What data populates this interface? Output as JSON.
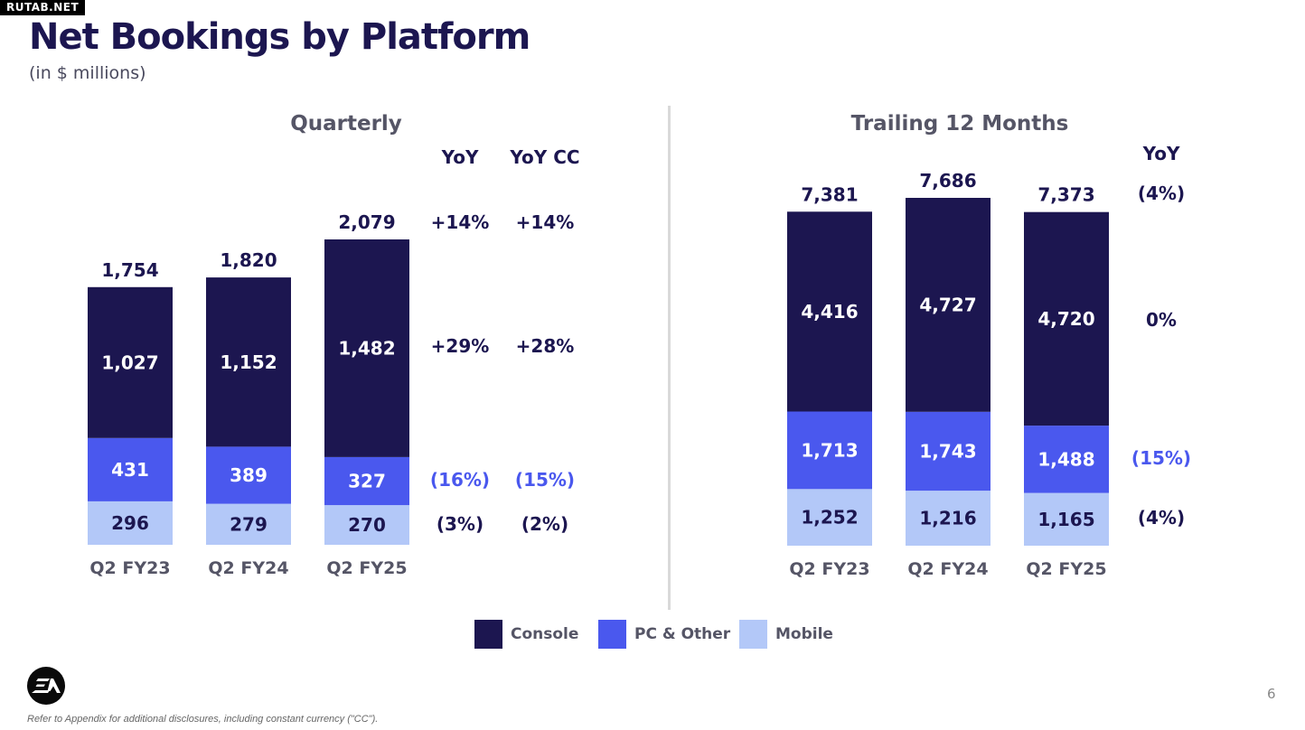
{
  "watermark": "RUTAB.NET",
  "header": {
    "title": "Net Bookings by Platform",
    "subtitle": "(in $ millions)"
  },
  "colors": {
    "console": "#1c1650",
    "pc_other": "#4a58ee",
    "mobile": "#b3c8f8",
    "pc_negative_text": "#4a58ee"
  },
  "chart_data": [
    {
      "type": "bar",
      "stacked": true,
      "title": "Quarterly",
      "categories": [
        "Q2 FY23",
        "Q2 FY24",
        "Q2 FY25"
      ],
      "series": [
        {
          "name": "Mobile",
          "values": [
            296,
            279,
            270
          ]
        },
        {
          "name": "PC & Other",
          "values": [
            431,
            389,
            327
          ]
        },
        {
          "name": "Console",
          "values": [
            1027,
            1152,
            1482
          ]
        }
      ],
      "series_labels": {
        "Mobile": [
          "296",
          "279",
          "270"
        ],
        "PC & Other": [
          "431",
          "389",
          "327"
        ],
        "Console": [
          "1,027",
          "1,152",
          "1,482"
        ]
      },
      "totals": [
        1754,
        1820,
        2079
      ],
      "total_labels": [
        "1,754",
        "1,820",
        "2,079"
      ],
      "yoy_header": "YoY",
      "yoy_cc_header": "YoY CC",
      "yoy": {
        "total": "+14%",
        "Console": "+29%",
        "PC & Other": "(16%)",
        "Mobile": "(3%)"
      },
      "yoy_cc": {
        "total": "+14%",
        "Console": "+28%",
        "PC & Other": "(15%)",
        "Mobile": "(2%)"
      }
    },
    {
      "type": "bar",
      "stacked": true,
      "title": "Trailing 12 Months",
      "categories": [
        "Q2 FY23",
        "Q2 FY24",
        "Q2 FY25"
      ],
      "series": [
        {
          "name": "Mobile",
          "values": [
            1252,
            1216,
            1165
          ]
        },
        {
          "name": "PC & Other",
          "values": [
            1713,
            1743,
            1488
          ]
        },
        {
          "name": "Console",
          "values": [
            4416,
            4727,
            4720
          ]
        }
      ],
      "series_labels": {
        "Mobile": [
          "1,252",
          "1,216",
          "1,165"
        ],
        "PC & Other": [
          "1,713",
          "1,743",
          "1,488"
        ],
        "Console": [
          "4,416",
          "4,727",
          "4,720"
        ]
      },
      "totals": [
        7381,
        7686,
        7373
      ],
      "total_labels": [
        "7,381",
        "7,686",
        "7,373"
      ],
      "yoy_header": "YoY",
      "yoy": {
        "total": "(4%)",
        "Console": "0%",
        "PC & Other": "(15%)",
        "Mobile": "(4%)"
      }
    }
  ],
  "legend": [
    {
      "label": "Console",
      "color": "#1c1650"
    },
    {
      "label": "PC & Other",
      "color": "#4a58ee"
    },
    {
      "label": "Mobile",
      "color": "#b3c8f8"
    }
  ],
  "logo": {
    "icon": "ea-logo-icon"
  },
  "page_number": "6",
  "footnote": "Refer to Appendix for additional disclosures, including constant currency (\"CC\")."
}
